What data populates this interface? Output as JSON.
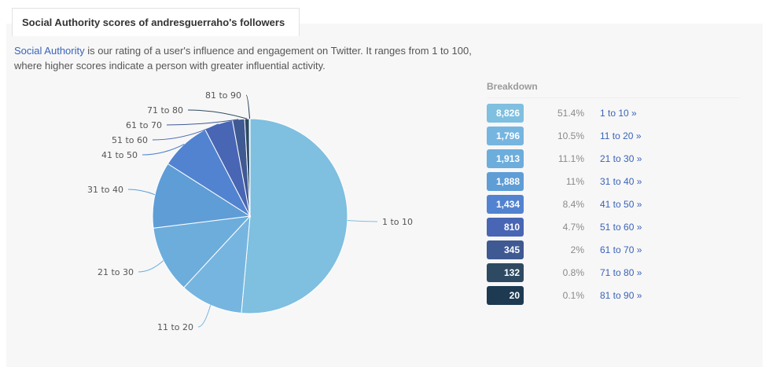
{
  "header": {
    "title": "Social Authority scores of andresguerraho's followers"
  },
  "intro": {
    "link_text": "Social Authority",
    "text": " is our rating of a user's influence and engagement on Twitter. It ranges from 1 to 100, where higher scores indicate a person with greater influential activity."
  },
  "breakdown": {
    "title": "Breakdown",
    "rows": [
      {
        "count": "8,826",
        "pct": "51.4%",
        "range": "1 to 10 »",
        "color": "#7fbfe0"
      },
      {
        "count": "1,796",
        "pct": "10.5%",
        "range": "11 to 20 »",
        "color": "#76b5e0"
      },
      {
        "count": "1,913",
        "pct": "11.1%",
        "range": "21 to 30 »",
        "color": "#6caddc"
      },
      {
        "count": "1,888",
        "pct": "11%",
        "range": "31 to 40 »",
        "color": "#5f9dd6"
      },
      {
        "count": "1,434",
        "pct": "8.4%",
        "range": "41 to 50 »",
        "color": "#5283d0"
      },
      {
        "count": "810",
        "pct": "4.7%",
        "range": "51 to 60 »",
        "color": "#4866b4"
      },
      {
        "count": "345",
        "pct": "2%",
        "range": "61 to 70 »",
        "color": "#3f5993"
      },
      {
        "count": "132",
        "pct": "0.8%",
        "range": "71 to 80 »",
        "color": "#2e4a62"
      },
      {
        "count": "20",
        "pct": "0.1%",
        "range": "81 to 90 »",
        "color": "#1d3a52"
      }
    ]
  },
  "chart_data": {
    "type": "pie",
    "categories": [
      "1 to 10",
      "11 to 20",
      "21 to 30",
      "31 to 40",
      "41 to 50",
      "51 to 60",
      "61 to 70",
      "71 to 80",
      "81 to 90"
    ],
    "values": [
      8826,
      1796,
      1913,
      1888,
      1434,
      810,
      345,
      132,
      20
    ],
    "colors": [
      "#7fbfe0",
      "#76b5e0",
      "#6caddc",
      "#5f9dd6",
      "#5283d0",
      "#4866b4",
      "#3f5993",
      "#2e4a62",
      "#1d3a52"
    ]
  }
}
